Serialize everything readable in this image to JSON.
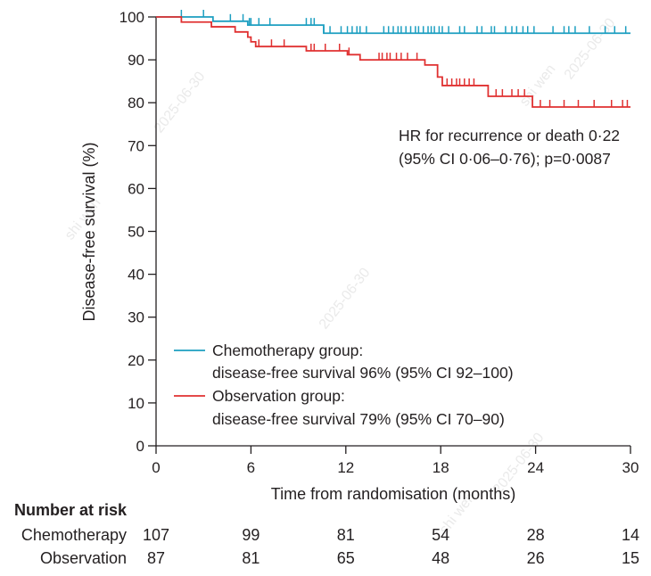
{
  "chart_data": {
    "type": "line",
    "subtype": "kaplan-meier",
    "title": "",
    "xlabel": "Time from randomisation (months)",
    "ylabel": "Disease-free survival (%)",
    "xlim": [
      0,
      30
    ],
    "ylim": [
      0,
      100
    ],
    "x_ticks": [
      0,
      6,
      12,
      18,
      24,
      30
    ],
    "y_ticks": [
      0,
      10,
      20,
      30,
      40,
      50,
      60,
      70,
      80,
      90,
      100
    ],
    "grid": false,
    "annotation": {
      "line1": "HR for recurrence or death 0·22",
      "line2": "(95% CI 0·06–0·76); p=0·0087"
    },
    "series": [
      {
        "name": "Chemotherapy group",
        "legend_line1": "Chemotherapy group:",
        "legend_line2": "disease-free survival 96% (95% CI 92–100)",
        "color": "#1d9fc1",
        "steps": [
          [
            0,
            100
          ],
          [
            3.6,
            99
          ],
          [
            5.8,
            98.1
          ],
          [
            10.6,
            96.2
          ],
          [
            30,
            96.2
          ]
        ],
        "censor_x": [
          1.6,
          3.0,
          4.7,
          5.5,
          5.9,
          6.0,
          6.5,
          7.2,
          9.5,
          9.8,
          10.0,
          10.6,
          11.0,
          11.7,
          12.1,
          12.4,
          12.7,
          12.9,
          13.3,
          14.4,
          14.7,
          15.0,
          15.3,
          15.5,
          15.8,
          16.1,
          16.4,
          16.6,
          16.9,
          17.2,
          17.4,
          17.6,
          17.9,
          18.1,
          18.5,
          19.2,
          19.5,
          20.3,
          20.6,
          21.2,
          21.4,
          22.1,
          22.5,
          22.8,
          23.2,
          23.5,
          23.9,
          25.1,
          25.8,
          26.1,
          26.5,
          27.4,
          28.4,
          29.0,
          29.7
        ]
      },
      {
        "name": "Observation group",
        "legend_line1": "Observation group:",
        "legend_line2": "disease-free survival 79% (95% CI 70–90)",
        "color": "#e03131",
        "steps": [
          [
            0,
            100
          ],
          [
            1.6,
            98.8
          ],
          [
            3.5,
            97.7
          ],
          [
            5.0,
            96.5
          ],
          [
            5.8,
            95.3
          ],
          [
            6.0,
            94.2
          ],
          [
            6.3,
            93.1
          ],
          [
            9.5,
            92.1
          ],
          [
            10.7,
            92.1
          ],
          [
            12.1,
            91.2
          ],
          [
            12.9,
            90.0
          ],
          [
            17.0,
            88.8
          ],
          [
            17.8,
            86.0
          ],
          [
            18.1,
            84.0
          ],
          [
            20.1,
            84.0
          ],
          [
            21.0,
            81.5
          ],
          [
            23.8,
            79.0
          ],
          [
            30,
            79.0
          ]
        ],
        "censor_x": [
          6.5,
          7.3,
          8.1,
          9.8,
          10.0,
          10.7,
          11.6,
          12.2,
          14.1,
          14.3,
          14.6,
          14.8,
          15.2,
          15.5,
          15.9,
          16.5,
          18.4,
          18.7,
          19.0,
          19.2,
          19.5,
          19.8,
          20.1,
          21.5,
          21.9,
          22.5,
          22.9,
          23.3,
          24.3,
          24.9,
          25.8,
          26.7,
          27.7,
          28.8,
          29.5,
          29.8
        ]
      }
    ],
    "number_at_risk": {
      "title": "Number at risk",
      "times": [
        0,
        6,
        12,
        18,
        24,
        30
      ],
      "rows": [
        {
          "label": "Chemotherapy",
          "values": [
            107,
            99,
            81,
            54,
            28,
            14
          ]
        },
        {
          "label": "Observation",
          "values": [
            87,
            81,
            65,
            48,
            26,
            15
          ]
        }
      ]
    }
  },
  "watermark": {
    "date": "2025-06-30",
    "name": "shi wen"
  }
}
